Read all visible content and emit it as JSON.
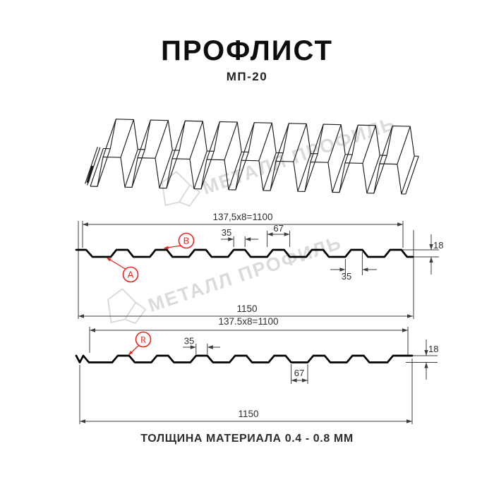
{
  "page": {
    "title": "ПРОФЛИСТ",
    "subtitle": "МП-20",
    "footer_note": "ТОЛЩИНА МАТЕРИАЛА 0.4 - 0.8 ММ"
  },
  "watermark": {
    "brand": "МЕТАЛЛ ПРОФИЛЬ"
  },
  "colors": {
    "accent_red": "#e8231e",
    "drawing_line": "#3c3c3c",
    "profile_line": "#000000",
    "dim_text": "#2e2e2e",
    "watermark_gray": "#dbdbdb",
    "background": "#ffffff"
  },
  "section_top": {
    "working_width": "137,5x8=1100",
    "overall_width": "1150",
    "rib_top_width": "35",
    "rib_base_width": "67",
    "profile_height": "18",
    "edge_rib_width": "35",
    "marker_a": "A",
    "marker_b": "B"
  },
  "section_bottom": {
    "working_width": "137.5x8=1100",
    "overall_width": "1150",
    "rib_top_width": "35",
    "groove_width": "67",
    "profile_height": "18",
    "marker_r": "R"
  }
}
